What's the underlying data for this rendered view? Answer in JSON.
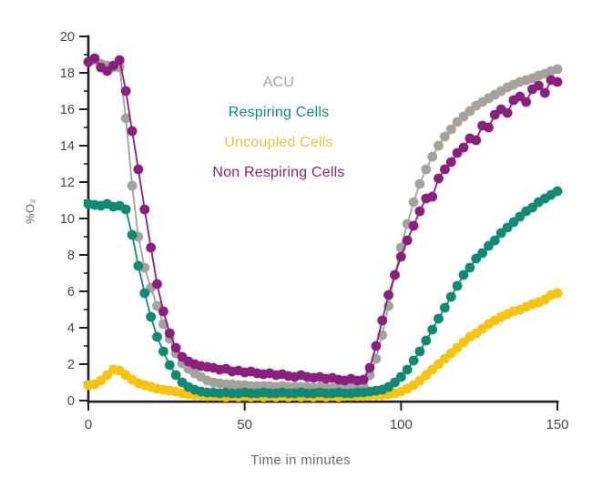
{
  "figure": {
    "background": "#ffffff"
  },
  "legend": {
    "items": [
      {
        "label": "ACU",
        "color": "#a6a19b"
      },
      {
        "label": "Respiring Cells",
        "color": "#108a74"
      },
      {
        "label": "Uncoupled Cells",
        "color": "#eec33c"
      },
      {
        "label": "Non Respiring Cells",
        "color": "#8b1f7f"
      }
    ]
  },
  "chart_data": {
    "type": "scatter",
    "marker": "circle",
    "title": "",
    "x_label": "Time in minutes",
    "y_label": "%O₂",
    "xlim": [
      0,
      150
    ],
    "ylim": [
      0,
      20
    ],
    "x_ticks": [
      0,
      50,
      100,
      150
    ],
    "y_ticks": [
      0,
      2,
      4,
      6,
      8,
      10,
      12,
      14,
      16,
      18,
      20
    ],
    "y_minor_ticks": [
      1,
      3,
      5,
      7,
      9,
      11,
      13,
      15,
      17,
      19
    ],
    "grid": false,
    "legend_position": "upper-center-inside",
    "axis_color": "#231f20",
    "tick_label_color": "#48484a",
    "x": [
      0,
      2,
      4,
      6,
      8,
      10,
      12,
      14,
      16,
      18,
      20,
      22,
      24,
      26,
      28,
      30,
      32,
      34,
      36,
      38,
      40,
      42,
      44,
      46,
      48,
      50,
      52,
      54,
      56,
      58,
      60,
      62,
      64,
      66,
      68,
      70,
      72,
      74,
      76,
      78,
      80,
      82,
      84,
      86,
      88,
      90,
      92,
      94,
      96,
      98,
      100,
      102,
      104,
      106,
      108,
      110,
      112,
      114,
      116,
      118,
      120,
      122,
      124,
      126,
      128,
      130,
      132,
      134,
      136,
      138,
      140,
      142,
      144,
      146,
      148,
      150
    ],
    "series": [
      {
        "name": "ACU",
        "color": "#a6a19b",
        "values": [
          18.6,
          18.7,
          18.5,
          18.4,
          18.3,
          18.3,
          15.5,
          11.8,
          9.0,
          7.3,
          6.2,
          5.2,
          4.2,
          3.4,
          2.6,
          2.05,
          1.75,
          1.5,
          1.3,
          1.1,
          1.0,
          0.95,
          0.9,
          0.9,
          0.85,
          0.85,
          0.8,
          0.8,
          0.8,
          0.8,
          0.75,
          0.8,
          0.75,
          0.75,
          0.75,
          0.75,
          0.7,
          0.75,
          0.7,
          0.7,
          0.7,
          0.7,
          0.7,
          0.75,
          0.8,
          1.4,
          2.3,
          3.6,
          5.2,
          6.9,
          8.4,
          9.7,
          10.9,
          11.9,
          12.7,
          13.4,
          14.0,
          14.5,
          14.9,
          15.3,
          15.6,
          15.9,
          16.2,
          16.4,
          16.6,
          16.8,
          17.0,
          17.2,
          17.35,
          17.5,
          17.6,
          17.7,
          17.85,
          17.95,
          18.1,
          18.2
        ]
      },
      {
        "name": "Respiring Cells",
        "color": "#108a74",
        "values": [
          10.8,
          10.75,
          10.7,
          10.8,
          10.65,
          10.7,
          10.5,
          9.1,
          7.4,
          5.9,
          4.6,
          3.5,
          2.7,
          1.95,
          1.4,
          1.0,
          0.75,
          0.6,
          0.5,
          0.45,
          0.45,
          0.4,
          0.45,
          0.4,
          0.4,
          0.45,
          0.4,
          0.4,
          0.45,
          0.4,
          0.4,
          0.45,
          0.4,
          0.4,
          0.45,
          0.4,
          0.4,
          0.45,
          0.4,
          0.4,
          0.45,
          0.4,
          0.4,
          0.45,
          0.45,
          0.5,
          0.55,
          0.6,
          0.75,
          1.0,
          1.3,
          1.7,
          2.2,
          2.7,
          3.3,
          3.9,
          4.5,
          5.1,
          5.7,
          6.3,
          6.9,
          7.3,
          7.8,
          8.1,
          8.5,
          8.8,
          9.2,
          9.5,
          9.8,
          10.1,
          10.4,
          10.6,
          10.9,
          11.1,
          11.3,
          11.5
        ]
      },
      {
        "name": "Uncoupled Cells",
        "color": "#f8c30f",
        "values": [
          0.85,
          0.9,
          1.1,
          1.4,
          1.7,
          1.65,
          1.4,
          1.15,
          0.95,
          0.85,
          0.75,
          0.65,
          0.6,
          0.55,
          0.5,
          0.4,
          0.35,
          0.3,
          0.3,
          0.25,
          0.25,
          0.25,
          0.2,
          0.25,
          0.2,
          0.25,
          0.2,
          0.25,
          0.2,
          0.25,
          0.2,
          0.25,
          0.2,
          0.25,
          0.2,
          0.25,
          0.2,
          0.25,
          0.2,
          0.25,
          0.2,
          0.25,
          0.25,
          0.25,
          0.25,
          0.3,
          0.3,
          0.3,
          0.35,
          0.4,
          0.5,
          0.65,
          0.85,
          1.1,
          1.4,
          1.7,
          2.0,
          2.3,
          2.6,
          2.9,
          3.2,
          3.5,
          3.7,
          3.95,
          4.2,
          4.4,
          4.6,
          4.75,
          4.9,
          5.0,
          5.15,
          5.3,
          5.4,
          5.55,
          5.8,
          5.9
        ]
      },
      {
        "name": "Non Respiring Cells",
        "color": "#8b1f7f",
        "values": [
          18.6,
          18.8,
          18.3,
          18.1,
          18.4,
          18.7,
          17.0,
          14.8,
          12.7,
          10.5,
          8.4,
          6.4,
          4.9,
          3.7,
          2.9,
          2.4,
          2.15,
          2.0,
          1.9,
          1.85,
          1.8,
          1.7,
          1.75,
          1.6,
          1.65,
          1.55,
          1.6,
          1.5,
          1.45,
          1.5,
          1.4,
          1.45,
          1.35,
          1.3,
          1.4,
          1.3,
          1.25,
          1.3,
          1.2,
          1.25,
          1.15,
          1.1,
          1.2,
          1.1,
          1.15,
          1.8,
          3.0,
          4.4,
          5.8,
          6.9,
          7.9,
          8.8,
          9.6,
          10.4,
          11.1,
          11.2,
          12.2,
          12.7,
          13.1,
          13.6,
          13.9,
          14.4,
          14.3,
          15.1,
          15.0,
          15.7,
          16.0,
          15.8,
          16.5,
          16.7,
          16.4,
          17.1,
          17.3,
          16.9,
          17.6,
          17.5
        ]
      }
    ],
    "draw_order": [
      0,
      2,
      1,
      3
    ]
  }
}
